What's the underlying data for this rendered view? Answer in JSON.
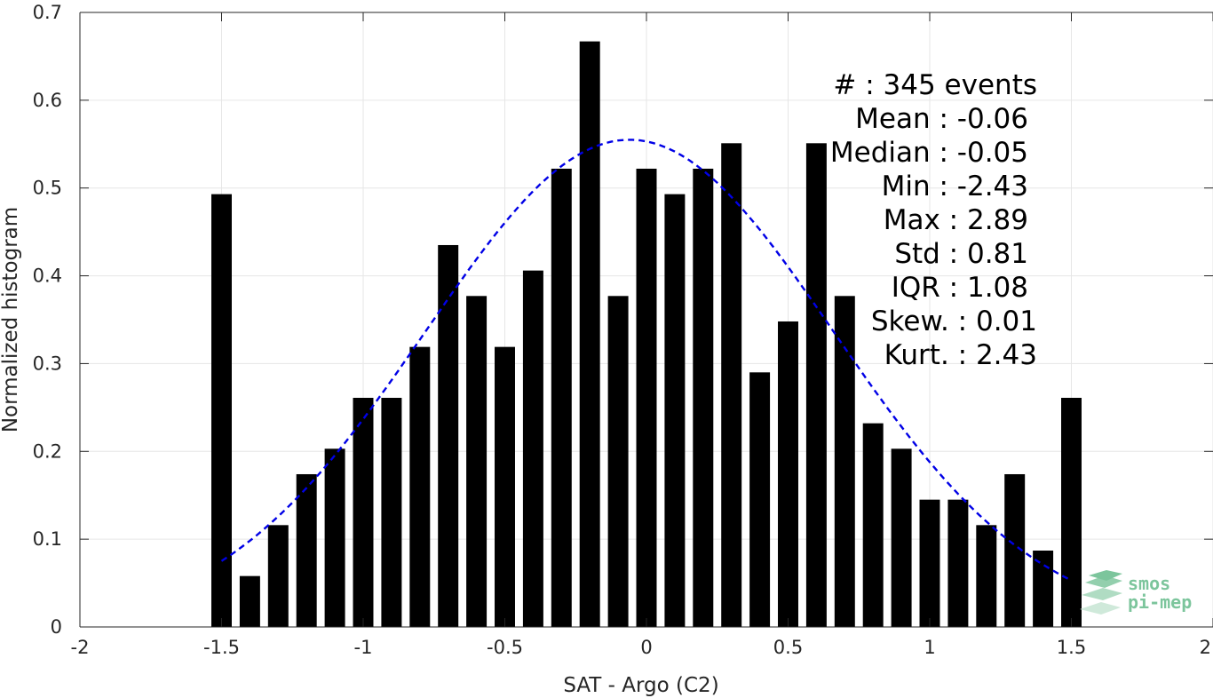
{
  "chart_data": {
    "type": "bar",
    "xlabel": "SAT - Argo (C2)",
    "ylabel": "Normalized histogram",
    "xlim": [
      -2,
      2
    ],
    "ylim": [
      0,
      0.7
    ],
    "x_ticks": [
      -2,
      -1.5,
      -1,
      -0.5,
      0,
      0.5,
      1,
      1.5,
      2
    ],
    "x_tick_labels": [
      "-2",
      "-1.5",
      "-1",
      "-0.5",
      "0",
      "0.5",
      "1",
      "1.5",
      "2"
    ],
    "y_ticks": [
      0,
      0.1,
      0.2,
      0.3,
      0.4,
      0.5,
      0.6,
      0.7
    ],
    "y_tick_labels": [
      "0",
      "0.1",
      "0.2",
      "0.3",
      "0.4",
      "0.5",
      "0.6",
      "0.7"
    ],
    "grid": true,
    "bar_color": "#000000",
    "bins": [
      -1.5,
      -1.4,
      -1.3,
      -1.2,
      -1.1,
      -1.0,
      -0.9,
      -0.8,
      -0.7,
      -0.6,
      -0.5,
      -0.4,
      -0.3,
      -0.2,
      -0.1,
      0.0,
      0.1,
      0.2,
      0.3,
      0.4,
      0.5,
      0.6,
      0.7,
      0.8,
      0.9,
      1.0,
      1.1,
      1.2,
      1.3,
      1.4,
      1.5
    ],
    "values": [
      0.493,
      0.058,
      0.116,
      0.174,
      0.203,
      0.261,
      0.261,
      0.319,
      0.435,
      0.377,
      0.319,
      0.406,
      0.522,
      0.667,
      0.377,
      0.522,
      0.493,
      0.522,
      0.551,
      0.29,
      0.348,
      0.551,
      0.377,
      0.232,
      0.203,
      0.145,
      0.145,
      0.116,
      0.174,
      0.087,
      0.261
    ],
    "fit_curve": {
      "type": "gaussian",
      "color": "#0000e6",
      "style": "dashed",
      "mean": -0.06,
      "std": 0.72,
      "peak": 0.555,
      "x_range": [
        -1.5,
        1.5
      ]
    },
    "stats_lines": [
      "#  : 345 events",
      "Mean : -0.06",
      "Median : -0.05",
      "Min : -2.43",
      "Max : 2.89",
      "Std : 0.81",
      "IQR : 1.08",
      "Skew. : 0.01",
      "Kurt. : 2.43"
    ]
  },
  "logo": {
    "line1": "smos",
    "line2": "pi-mep",
    "color": "#7cc59c"
  }
}
